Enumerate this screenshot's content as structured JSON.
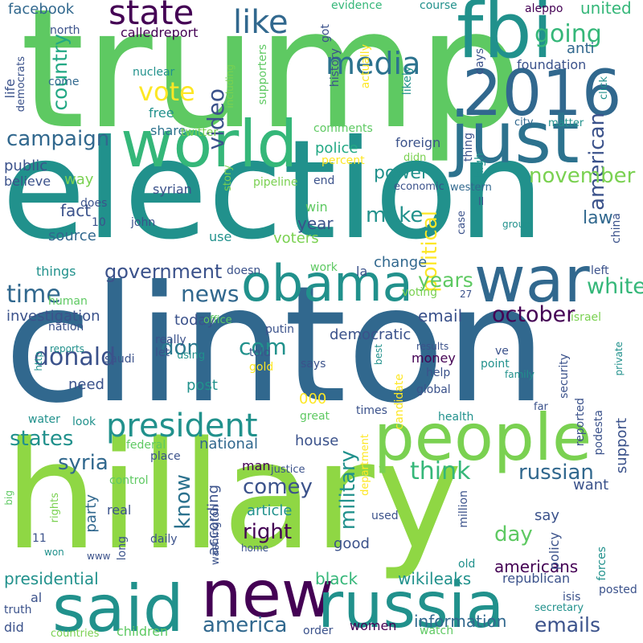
{
  "colors": {
    "background": "#ffffff",
    "palette": [
      "#440154",
      "#3b528b",
      "#21918c",
      "#5ec962",
      "#fde725"
    ]
  },
  "words": [
    {
      "text": "trump",
      "color": "#5ec962"
    },
    {
      "text": "election",
      "color": "#21918c"
    },
    {
      "text": "clinton",
      "color": "#31688e"
    },
    {
      "text": "hillary",
      "color": "#8fd744"
    },
    {
      "text": "fbi",
      "color": "#21918c"
    },
    {
      "text": "2016",
      "color": "#31688e"
    },
    {
      "text": "just",
      "color": "#2c728e"
    },
    {
      "text": "world",
      "color": "#35b779"
    },
    {
      "text": "war",
      "color": "#31688e"
    },
    {
      "text": "obama",
      "color": "#21918c"
    },
    {
      "text": "people",
      "color": "#7ad151"
    },
    {
      "text": "new",
      "color": "#440154"
    },
    {
      "text": "said",
      "color": "#21918c"
    },
    {
      "text": "russia",
      "color": "#21918c"
    },
    {
      "text": "president",
      "color": "#21918c"
    },
    {
      "text": "state",
      "color": "#440154"
    },
    {
      "text": "like",
      "color": "#31688e"
    },
    {
      "text": "media",
      "color": "#2c728e"
    },
    {
      "text": "going",
      "color": "#35b779"
    },
    {
      "text": "campaign",
      "color": "#31688e"
    },
    {
      "text": "vote",
      "color": "#fde725"
    },
    {
      "text": "video",
      "color": "#3b528b"
    },
    {
      "text": "country",
      "color": "#22a884"
    },
    {
      "text": "american",
      "color": "#3b528b"
    },
    {
      "text": "november",
      "color": "#7ad151"
    },
    {
      "text": "political",
      "color": "#fde725"
    },
    {
      "text": "government",
      "color": "#3b528b"
    },
    {
      "text": "time",
      "color": "#31688e"
    },
    {
      "text": "news",
      "color": "#31688e"
    },
    {
      "text": "donald",
      "color": "#3b528b"
    },
    {
      "text": "com",
      "color": "#21918c"
    },
    {
      "text": "don",
      "color": "#2a788e"
    },
    {
      "text": "october",
      "color": "#440154"
    },
    {
      "text": "white",
      "color": "#35b779"
    },
    {
      "text": "years",
      "color": "#5ec962"
    },
    {
      "text": "states",
      "color": "#21918c"
    },
    {
      "text": "syria",
      "color": "#31688e"
    },
    {
      "text": "know",
      "color": "#2c728e"
    },
    {
      "text": "comey",
      "color": "#3b528b"
    },
    {
      "text": "right",
      "color": "#440154"
    },
    {
      "text": "military",
      "color": "#21918c"
    },
    {
      "text": "think",
      "color": "#35b779"
    },
    {
      "text": "russian",
      "color": "#31688e"
    },
    {
      "text": "day",
      "color": "#5ec962"
    },
    {
      "text": "make",
      "color": "#21918c"
    },
    {
      "text": "america",
      "color": "#31688e"
    },
    {
      "text": "emails",
      "color": "#3b528b"
    },
    {
      "text": "presidential",
      "color": "#21918c"
    },
    {
      "text": "wikileaks",
      "color": "#21918c"
    },
    {
      "text": "information",
      "color": "#31688e"
    },
    {
      "text": "black",
      "color": "#35b779"
    },
    {
      "text": "americans",
      "color": "#440154"
    },
    {
      "text": "email",
      "color": "#3b528b"
    },
    {
      "text": "facebook",
      "color": "#31688e"
    },
    {
      "text": "united",
      "color": "#35b779"
    },
    {
      "text": "police",
      "color": "#22a884"
    },
    {
      "text": "power",
      "color": "#21918c"
    },
    {
      "text": "law",
      "color": "#31688e"
    },
    {
      "text": "year",
      "color": "#3b528b"
    },
    {
      "text": "voters",
      "color": "#7ad151"
    },
    {
      "text": "fact",
      "color": "#3b528b"
    },
    {
      "text": "source",
      "color": "#31688e"
    },
    {
      "text": "investigation",
      "color": "#3b528b"
    },
    {
      "text": "public",
      "color": "#3b528b"
    },
    {
      "text": "anti",
      "color": "#31688e"
    },
    {
      "text": "foundation",
      "color": "#3b528b"
    },
    {
      "text": "change",
      "color": "#31688e"
    },
    {
      "text": "democratic",
      "color": "#3b528b"
    },
    {
      "text": "support",
      "color": "#3b528b"
    },
    {
      "text": "house",
      "color": "#3b528b"
    },
    {
      "text": "national",
      "color": "#31688e"
    },
    {
      "text": "party",
      "color": "#31688e"
    },
    {
      "text": "article",
      "color": "#21918c"
    },
    {
      "text": "want",
      "color": "#3b528b"
    },
    {
      "text": "say",
      "color": "#3b528b"
    },
    {
      "text": "good",
      "color": "#3b528b"
    },
    {
      "text": "according",
      "color": "#3b528b"
    },
    {
      "text": "way",
      "color": "#7ad151"
    },
    {
      "text": "use",
      "color": "#21918c"
    },
    {
      "text": "today",
      "color": "#3b528b"
    },
    {
      "text": "need",
      "color": "#3b528b"
    },
    {
      "text": "post",
      "color": "#21918c"
    },
    {
      "text": "000",
      "color": "#fde725"
    },
    {
      "text": "calledreport",
      "color": "#440154"
    },
    {
      "text": "evidence",
      "color": "#35b779"
    },
    {
      "text": "course",
      "color": "#21918c"
    },
    {
      "text": "aleppo",
      "color": "#440154"
    },
    {
      "text": "north",
      "color": "#3b528b"
    },
    {
      "text": "got",
      "color": "#3b528b"
    },
    {
      "text": "days",
      "color": "#3b528b"
    },
    {
      "text": "likely",
      "color": "#21918c"
    },
    {
      "text": "nuclear",
      "color": "#21918c"
    },
    {
      "text": "come",
      "color": "#31688e"
    },
    {
      "text": "free",
      "color": "#21918c"
    },
    {
      "text": "share",
      "color": "#2c728e"
    },
    {
      "text": "twitter",
      "color": "#7ad151"
    },
    {
      "text": "history",
      "color": "#3b528b"
    },
    {
      "text": "supporters",
      "color": "#5ec962"
    },
    {
      "text": "actually",
      "color": "#fde725"
    },
    {
      "text": "including",
      "color": "#7ad151"
    },
    {
      "text": "life",
      "color": "#3b528b"
    },
    {
      "text": "democrats",
      "color": "#3b528b"
    },
    {
      "text": "click",
      "color": "#21918c"
    },
    {
      "text": "city",
      "color": "#31688e"
    },
    {
      "text": "matter",
      "color": "#21918c"
    },
    {
      "text": "comments",
      "color": "#5ec962"
    },
    {
      "text": "percent",
      "color": "#fde725"
    },
    {
      "text": "foreign",
      "color": "#3b528b"
    },
    {
      "text": "didn",
      "color": "#7ad151"
    },
    {
      "text": "thing",
      "color": "#3b528b"
    },
    {
      "text": "high",
      "color": "#21918c"
    },
    {
      "text": "story",
      "color": "#7ad151"
    },
    {
      "text": "pipeline",
      "color": "#7ad151"
    },
    {
      "text": "end",
      "color": "#3b528b"
    },
    {
      "text": "economic",
      "color": "#3b528b"
    },
    {
      "text": "western",
      "color": "#31688e"
    },
    {
      "text": "believe",
      "color": "#3b528b"
    },
    {
      "text": "syrian",
      "color": "#3b528b"
    },
    {
      "text": "does",
      "color": "#3b528b"
    },
    {
      "text": "ll",
      "color": "#3b528b"
    },
    {
      "text": "case",
      "color": "#3b528b"
    },
    {
      "text": "group",
      "color": "#21918c"
    },
    {
      "text": "china",
      "color": "#3b528b"
    },
    {
      "text": "10",
      "color": "#3b528b"
    },
    {
      "text": "john",
      "color": "#3b528b"
    },
    {
      "text": "win",
      "color": "#5ec962"
    },
    {
      "text": "things",
      "color": "#21918c"
    },
    {
      "text": "work",
      "color": "#5ec962"
    },
    {
      "text": "doesn",
      "color": "#3b528b"
    },
    {
      "text": "la",
      "color": "#3b528b"
    },
    {
      "text": "left",
      "color": "#3b528b"
    },
    {
      "text": "human",
      "color": "#5ec962"
    },
    {
      "text": "nation",
      "color": "#3b528b"
    },
    {
      "text": "voting",
      "color": "#7ad151"
    },
    {
      "text": "27",
      "color": "#3b528b"
    },
    {
      "text": "office",
      "color": "#5ec962"
    },
    {
      "text": "putin",
      "color": "#3b528b"
    },
    {
      "text": "israel",
      "color": "#7ad151"
    },
    {
      "text": "reports",
      "color": "#21918c"
    },
    {
      "text": "saudi",
      "color": "#3b528b"
    },
    {
      "text": "really",
      "color": "#3b528b"
    },
    {
      "text": "let",
      "color": "#3b528b"
    },
    {
      "text": "using",
      "color": "#21918c"
    },
    {
      "text": "http",
      "color": "#21918c"
    },
    {
      "text": "told",
      "color": "#3b528b"
    },
    {
      "text": "gold",
      "color": "#fde725"
    },
    {
      "text": "says",
      "color": "#3b528b"
    },
    {
      "text": "results",
      "color": "#3b528b"
    },
    {
      "text": "money",
      "color": "#440154"
    },
    {
      "text": "help",
      "color": "#3b528b"
    },
    {
      "text": "global",
      "color": "#3b528b"
    },
    {
      "text": "ve",
      "color": "#3b528b"
    },
    {
      "text": "point",
      "color": "#21918c"
    },
    {
      "text": "family",
      "color": "#21918c"
    },
    {
      "text": "security",
      "color": "#3b528b"
    },
    {
      "text": "best",
      "color": "#21918c"
    },
    {
      "text": "private",
      "color": "#21918c"
    },
    {
      "text": "candidate",
      "color": "#fde725"
    },
    {
      "text": "water",
      "color": "#21918c"
    },
    {
      "text": "look",
      "color": "#21918c"
    },
    {
      "text": "great",
      "color": "#5ec962"
    },
    {
      "text": "times",
      "color": "#3b528b"
    },
    {
      "text": "health",
      "color": "#21918c"
    },
    {
      "text": "far",
      "color": "#3b528b"
    },
    {
      "text": "reported",
      "color": "#3b528b"
    },
    {
      "text": "podesta",
      "color": "#3b528b"
    },
    {
      "text": "federal",
      "color": "#5ec962"
    },
    {
      "text": "place",
      "color": "#3b528b"
    },
    {
      "text": "department",
      "color": "#fde725"
    },
    {
      "text": "man",
      "color": "#440154"
    },
    {
      "text": "justice",
      "color": "#3b528b"
    },
    {
      "text": "control",
      "color": "#5ec962"
    },
    {
      "text": "washington",
      "color": "#3b528b"
    },
    {
      "text": "big",
      "color": "#5ec962"
    },
    {
      "text": "real",
      "color": "#3b528b"
    },
    {
      "text": "rights",
      "color": "#7ad151"
    },
    {
      "text": "11",
      "color": "#3b528b"
    },
    {
      "text": "won",
      "color": "#21918c"
    },
    {
      "text": "long",
      "color": "#3b528b"
    },
    {
      "text": "daily",
      "color": "#3b528b"
    },
    {
      "text": "www",
      "color": "#3b528b"
    },
    {
      "text": "home",
      "color": "#3b528b"
    },
    {
      "text": "used",
      "color": "#3b528b"
    },
    {
      "text": "million",
      "color": "#3b528b"
    },
    {
      "text": "policy",
      "color": "#3b528b"
    },
    {
      "text": "old",
      "color": "#21918c"
    },
    {
      "text": "forces",
      "color": "#21918c"
    },
    {
      "text": "republican",
      "color": "#3b528b"
    },
    {
      "text": "isis",
      "color": "#3b528b"
    },
    {
      "text": "posted",
      "color": "#3b528b"
    },
    {
      "text": "secretary",
      "color": "#21918c"
    },
    {
      "text": "al",
      "color": "#3b528b"
    },
    {
      "text": "truth",
      "color": "#3b528b"
    },
    {
      "text": "did",
      "color": "#3b528b"
    },
    {
      "text": "countries",
      "color": "#7ad151"
    },
    {
      "text": "children",
      "color": "#5ec962"
    },
    {
      "text": "order",
      "color": "#3b528b"
    },
    {
      "text": "women",
      "color": "#440154"
    },
    {
      "text": "watch",
      "color": "#5ec962"
    }
  ]
}
